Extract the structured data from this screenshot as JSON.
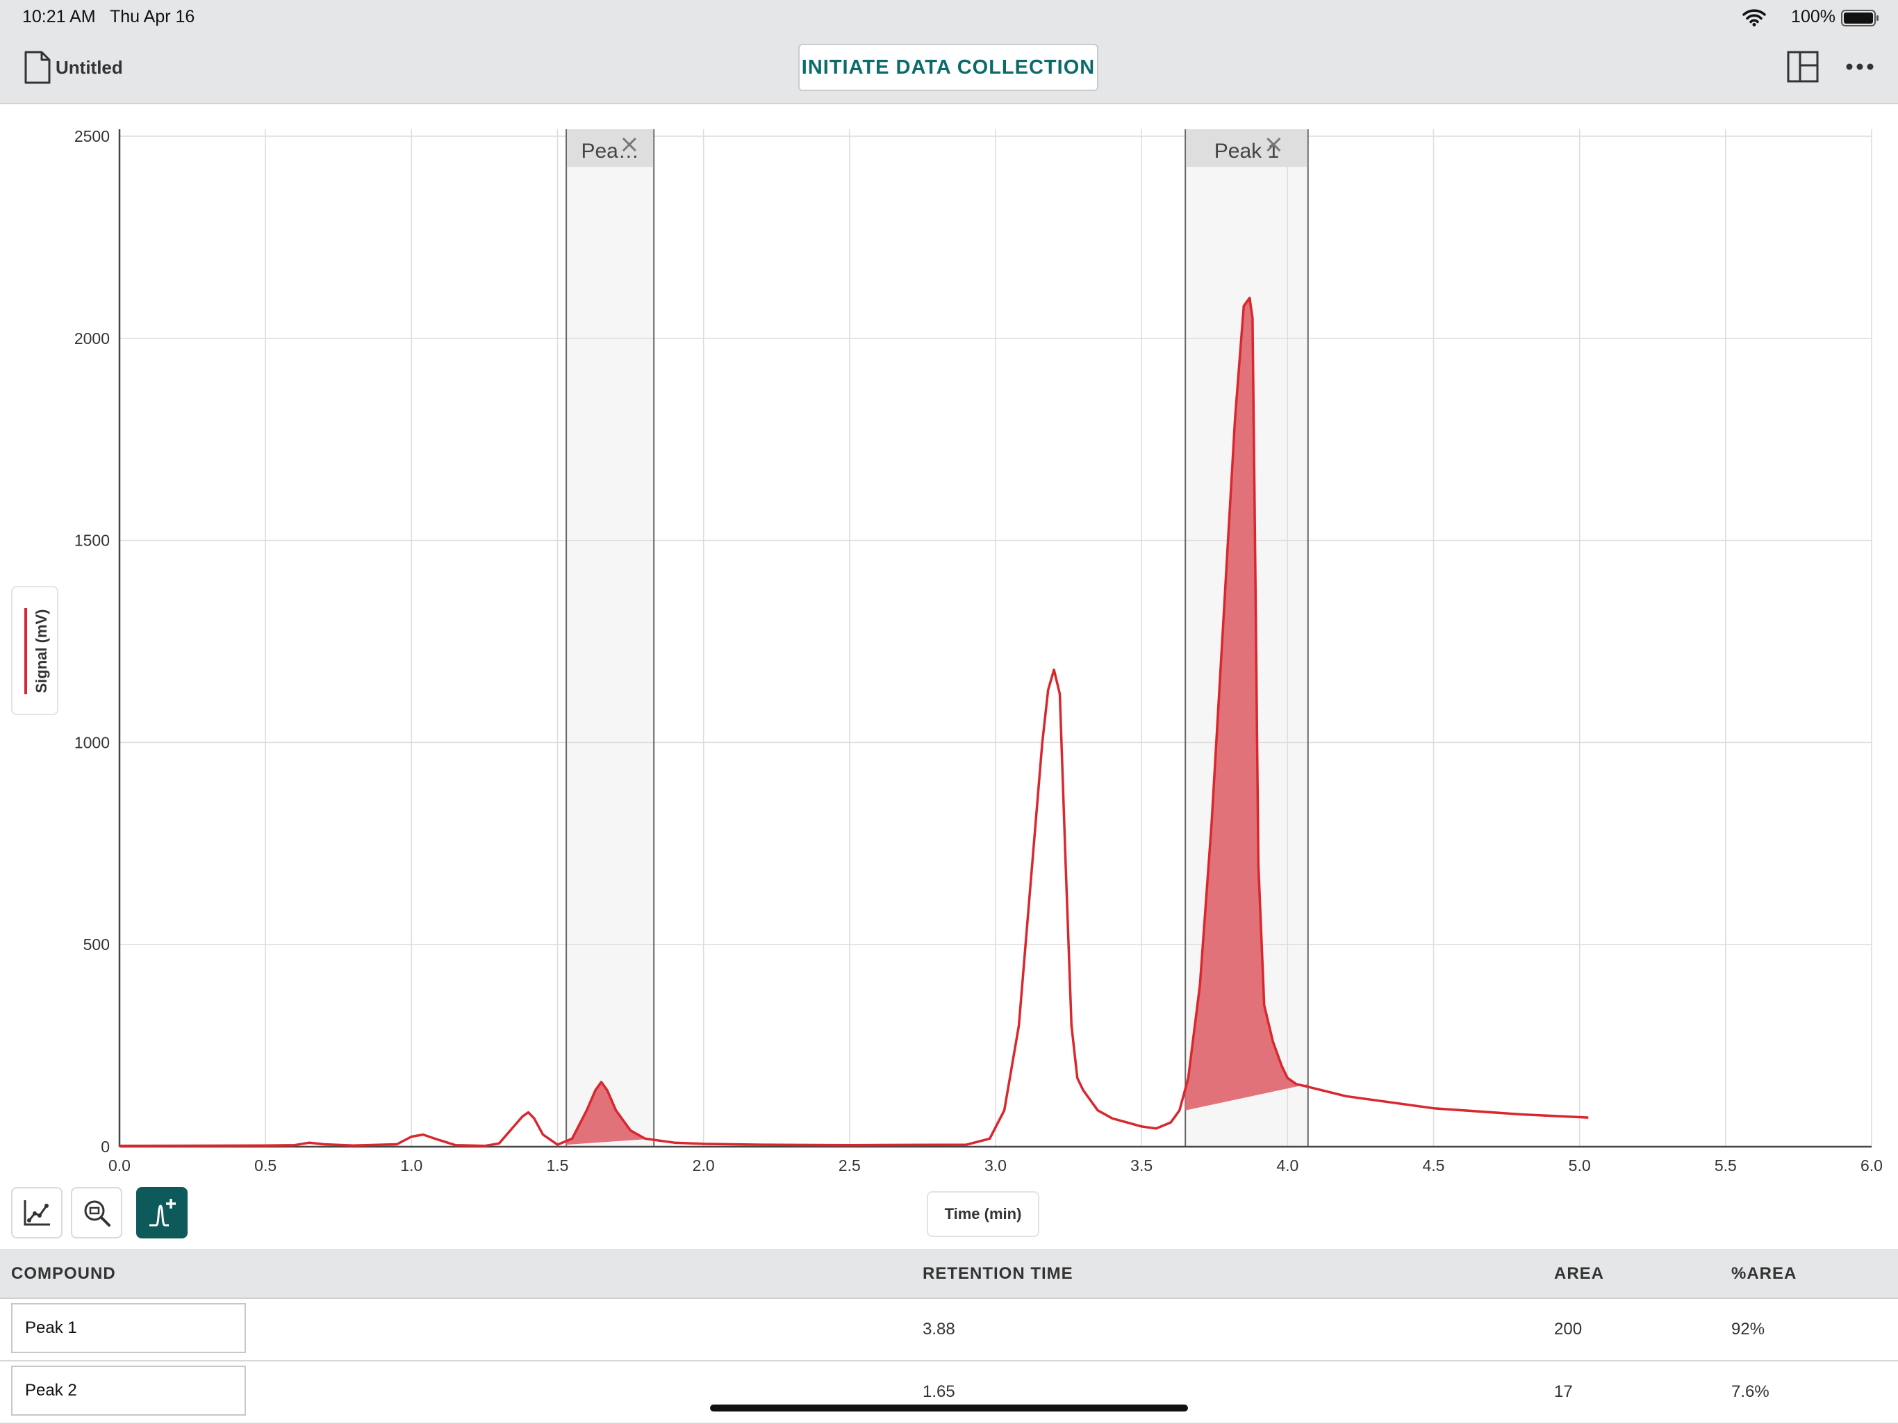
{
  "status_bar": {
    "time": "10:21 AM",
    "date": "Thu Apr 16",
    "battery": "100%"
  },
  "toolbar": {
    "document_title": "Untitled",
    "collect_button": "INITIATE DATA COLLECTION"
  },
  "chart_data": {
    "type": "line",
    "xlabel": "Time (min)",
    "ylabel": "Signal (mV)",
    "xlim": [
      0,
      6
    ],
    "ylim": [
      0,
      2500
    ],
    "x_ticks": [
      "0.0",
      "0.5",
      "1.0",
      "1.5",
      "2.0",
      "2.5",
      "3.0",
      "3.5",
      "4.0",
      "4.5",
      "5.0",
      "5.5",
      "6.0"
    ],
    "y_ticks": [
      "0",
      "500",
      "1000",
      "1500",
      "2000",
      "2500"
    ],
    "grid": true,
    "line_color": "#d9272e",
    "series": [
      {
        "values_x": [
          0.0,
          0.5,
          0.6,
          0.65,
          0.7,
          0.8,
          0.95,
          1.0,
          1.04,
          1.08,
          1.15,
          1.25,
          1.3,
          1.35,
          1.38,
          1.4,
          1.42,
          1.45,
          1.5,
          1.55,
          1.6,
          1.63,
          1.65,
          1.67,
          1.7,
          1.75,
          1.8,
          1.9,
          2.0,
          2.2,
          2.5,
          2.9,
          2.98,
          3.03,
          3.08,
          3.12,
          3.16,
          3.18,
          3.2,
          3.22,
          3.24,
          3.26,
          3.28,
          3.3,
          3.35,
          3.4,
          3.45,
          3.5,
          3.55,
          3.6,
          3.63,
          3.66,
          3.7,
          3.74,
          3.78,
          3.82,
          3.85,
          3.87,
          3.88,
          3.89,
          3.9,
          3.92,
          3.95,
          3.98,
          4.0,
          4.03,
          4.06,
          4.2,
          4.5,
          4.8,
          5.0,
          5.03
        ],
        "values_y": [
          2,
          3,
          4,
          10,
          6,
          3,
          6,
          25,
          30,
          20,
          4,
          2,
          8,
          50,
          75,
          85,
          70,
          30,
          5,
          20,
          90,
          140,
          160,
          140,
          90,
          40,
          20,
          10,
          7,
          5,
          4,
          5,
          20,
          90,
          300,
          650,
          1000,
          1130,
          1180,
          1120,
          700,
          300,
          170,
          140,
          90,
          70,
          60,
          50,
          45,
          60,
          90,
          170,
          400,
          800,
          1300,
          1800,
          2080,
          2100,
          2050,
          1400,
          700,
          350,
          260,
          200,
          170,
          155,
          150,
          125,
          95,
          80,
          73,
          72
        ]
      }
    ],
    "peak_regions": [
      {
        "label": "Pea…",
        "x_start": 1.53,
        "x_end": 1.83,
        "baseline": [
          [
            1.53,
            5
          ],
          [
            1.83,
            20
          ]
        ]
      },
      {
        "label": "Peak 1",
        "x_start": 3.65,
        "x_end": 4.07,
        "baseline": [
          [
            3.65,
            90
          ],
          [
            4.07,
            155
          ]
        ]
      }
    ]
  },
  "table": {
    "headers": {
      "compound": "COMPOUND",
      "retention_time": "RETENTION TIME",
      "area": "AREA",
      "percent_area": "%AREA"
    },
    "rows": [
      {
        "compound": "Peak 1",
        "retention_time": "3.88",
        "area": "200",
        "percent_area": "92%"
      },
      {
        "compound": "Peak 2",
        "retention_time": "1.65",
        "area": "17",
        "percent_area": "7.6%"
      }
    ]
  },
  "icons": [
    "wifi-icon",
    "battery-icon",
    "document-icon",
    "layout-icon",
    "more-icon",
    "graph-tool-icon",
    "zoom-icon",
    "add-peak-icon",
    "close-icon"
  ]
}
